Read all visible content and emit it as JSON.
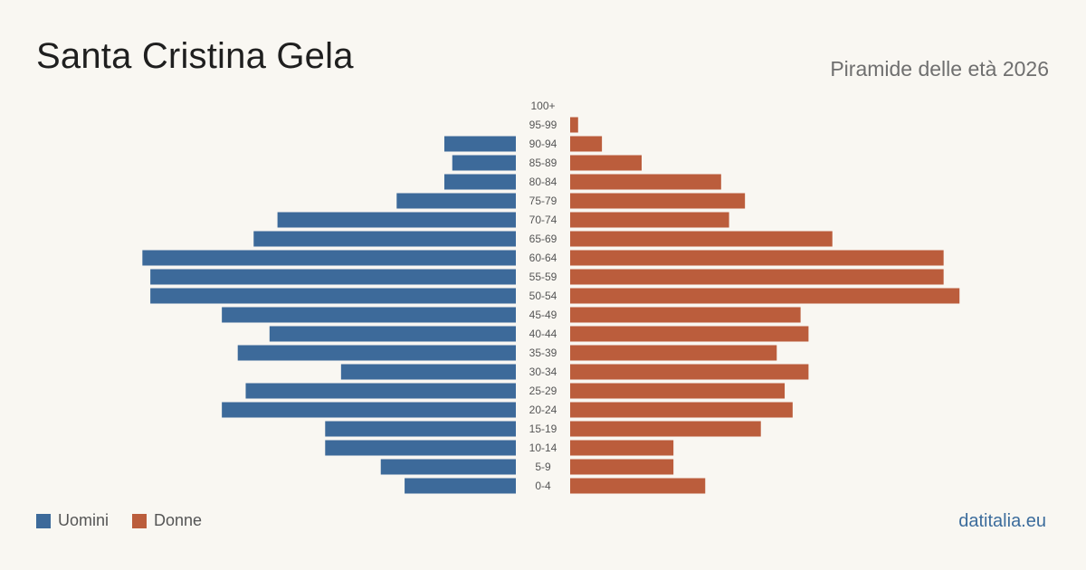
{
  "header": {
    "title": "Santa Cristina Gela",
    "subtitle": "Piramide delle età 2026"
  },
  "legend": {
    "men_label": "Uomini",
    "women_label": "Donne"
  },
  "brand": "datitalia.eu",
  "colors": {
    "men": "#3d6a9a",
    "women": "#bb5d3c",
    "background": "#f9f7f2",
    "label": "#555555"
  },
  "chart_data": {
    "type": "bar",
    "subtype": "population-pyramid",
    "title": "Santa Cristina Gela",
    "subtitle": "Piramide delle età 2026",
    "categories": [
      "100+",
      "95-99",
      "90-94",
      "85-89",
      "80-84",
      "75-79",
      "70-74",
      "65-69",
      "60-64",
      "55-59",
      "50-54",
      "45-49",
      "40-44",
      "35-39",
      "30-34",
      "25-29",
      "20-24",
      "15-19",
      "10-14",
      "5-9",
      "0-4"
    ],
    "series": [
      {
        "name": "Uomini",
        "values": [
          0,
          0,
          9,
          8,
          9,
          15,
          30,
          33,
          47,
          46,
          46,
          37,
          31,
          35,
          22,
          34,
          37,
          24,
          24,
          17,
          14
        ]
      },
      {
        "name": "Donne",
        "values": [
          0,
          1,
          4,
          9,
          19,
          22,
          20,
          33,
          47,
          47,
          49,
          29,
          30,
          26,
          30,
          27,
          28,
          24,
          13,
          13,
          17
        ]
      }
    ],
    "xlim": [
      0,
      50
    ],
    "grid": false,
    "legend_position": "bottom-left"
  }
}
